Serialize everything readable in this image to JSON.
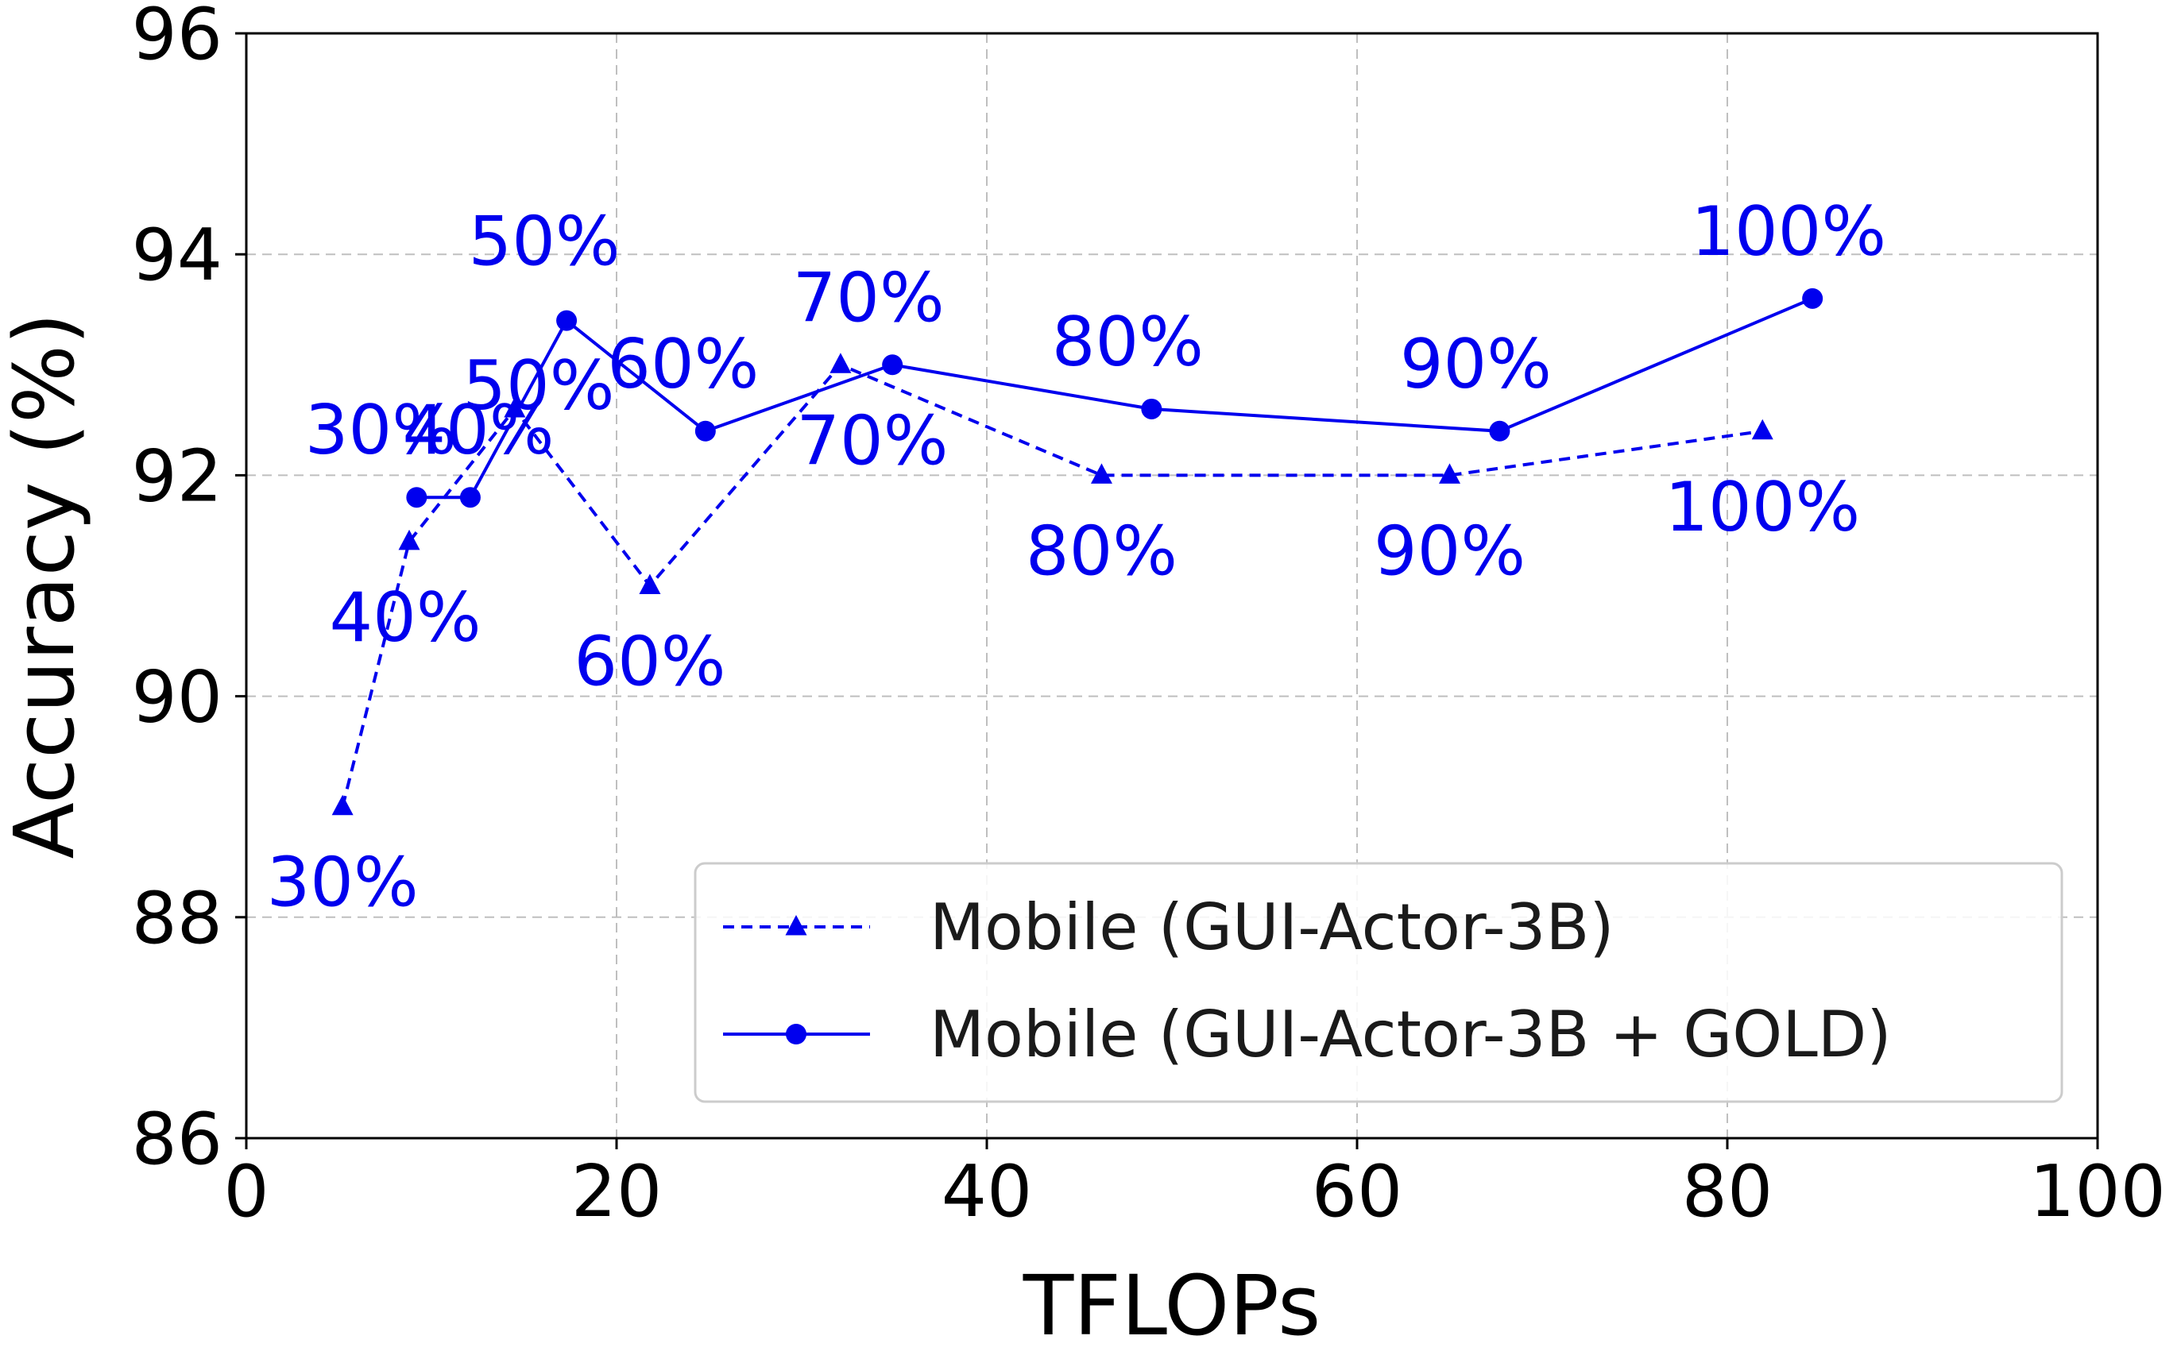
{
  "chart_data": {
    "type": "line",
    "title": "",
    "xlabel": "TFLOPs",
    "ylabel": "Accuracy (%)",
    "xlim": [
      0,
      100
    ],
    "ylim": [
      86,
      96
    ],
    "xticks": [
      "0",
      "20",
      "40",
      "60",
      "80",
      "100"
    ],
    "yticks": [
      "86",
      "88",
      "90",
      "92",
      "94",
      "96"
    ],
    "grid": true,
    "legend_position": "lower-right",
    "color": "#0000ee",
    "series": [
      {
        "name": "Mobile (GUI-Actor-3B)",
        "style": "dashed",
        "marker": "triangle",
        "points": [
          {
            "x": 5.2,
            "y": 89.0,
            "label": "30%"
          },
          {
            "x": 8.8,
            "y": 91.4,
            "label": "40%"
          },
          {
            "x": 14.5,
            "y": 92.6,
            "label": "50%"
          },
          {
            "x": 21.8,
            "y": 91.0,
            "label": "60%"
          },
          {
            "x": 32.1,
            "y": 93.0,
            "label": "70%"
          },
          {
            "x": 46.2,
            "y": 92.0,
            "label": "80%"
          },
          {
            "x": 65.0,
            "y": 92.0,
            "label": "90%"
          },
          {
            "x": 81.9,
            "y": 92.4,
            "label": "100%"
          }
        ]
      },
      {
        "name": "Mobile (GUI-Actor-3B + GOLD)",
        "style": "solid",
        "marker": "circle",
        "points": [
          {
            "x": 9.2,
            "y": 91.8,
            "label": "30%"
          },
          {
            "x": 12.1,
            "y": 91.8,
            "label": "40%"
          },
          {
            "x": 17.3,
            "y": 93.4,
            "label": "50%"
          },
          {
            "x": 24.8,
            "y": 92.4,
            "label": "60%"
          },
          {
            "x": 34.9,
            "y": 93.0,
            "label": "70%"
          },
          {
            "x": 48.9,
            "y": 92.6,
            "label": "80%"
          },
          {
            "x": 67.7,
            "y": 92.4,
            "label": "90%"
          },
          {
            "x": 84.6,
            "y": 93.6,
            "label": "100%"
          }
        ]
      }
    ]
  }
}
